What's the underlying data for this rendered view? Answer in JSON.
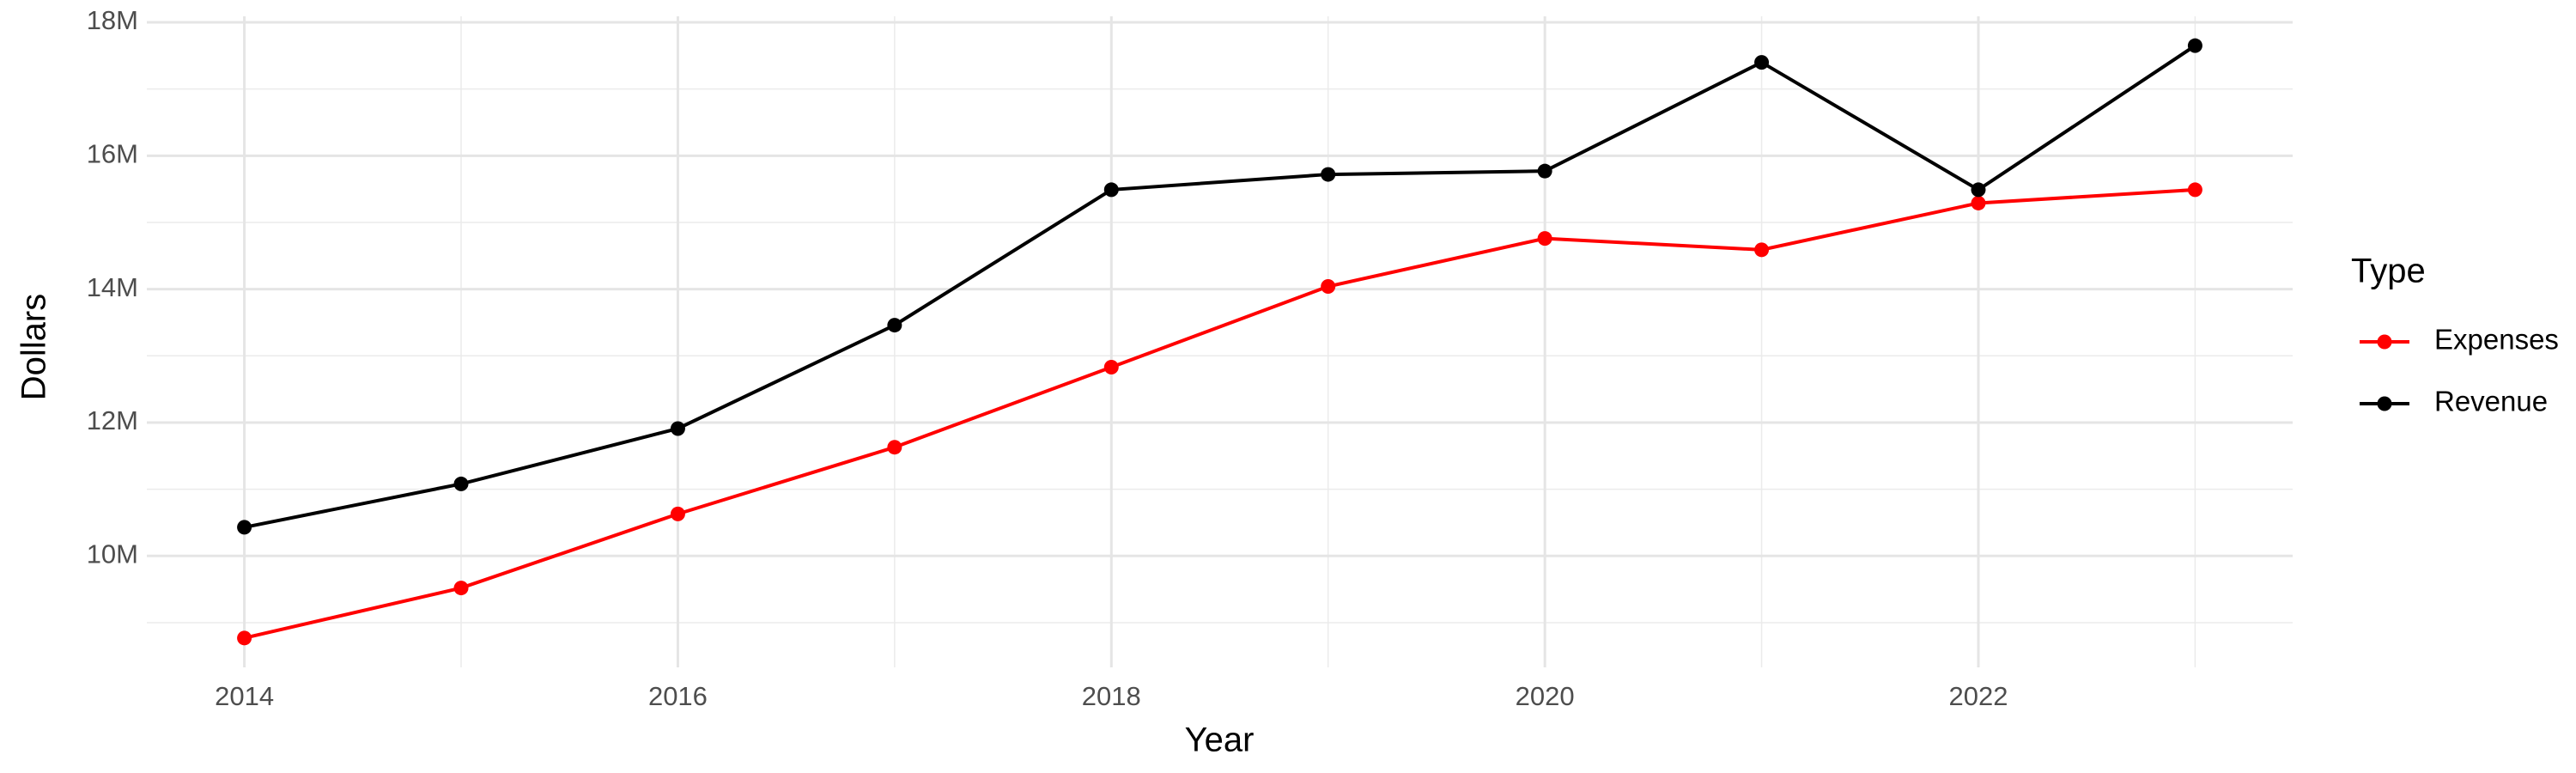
{
  "chart_data": {
    "type": "line",
    "x_label": "Year",
    "y_label": "Dollars",
    "legend_title": "Type",
    "legend_position": "right",
    "grid": true,
    "x": [
      2014,
      2015,
      2016,
      2017,
      2018,
      2019,
      2020,
      2021,
      2022,
      2023
    ],
    "series": [
      {
        "name": "Expenses",
        "color": "#ff0000",
        "values": [
          8770000,
          9520000,
          10630000,
          11630000,
          12830000,
          14040000,
          14760000,
          14590000,
          15290000,
          15490000
        ]
      },
      {
        "name": "Revenue",
        "color": "#000000",
        "values": [
          10430000,
          11080000,
          11910000,
          13460000,
          15490000,
          15720000,
          15770000,
          17400000,
          15490000,
          17650000
        ]
      }
    ],
    "xlim": [
      2013.55,
      2023.45
    ],
    "xticks": [
      2014,
      2016,
      2018,
      2020,
      2022
    ],
    "xminor": [
      2015,
      2017,
      2019,
      2021,
      2023
    ],
    "ylim": [
      8330000,
      18090000
    ],
    "yticks": [
      {
        "value": 10000000,
        "label": "10M"
      },
      {
        "value": 12000000,
        "label": "12M"
      },
      {
        "value": 14000000,
        "label": "14M"
      },
      {
        "value": 16000000,
        "label": "16M"
      },
      {
        "value": 18000000,
        "label": "18M"
      }
    ],
    "yminor": [
      9000000,
      11000000,
      13000000,
      15000000,
      17000000
    ]
  }
}
